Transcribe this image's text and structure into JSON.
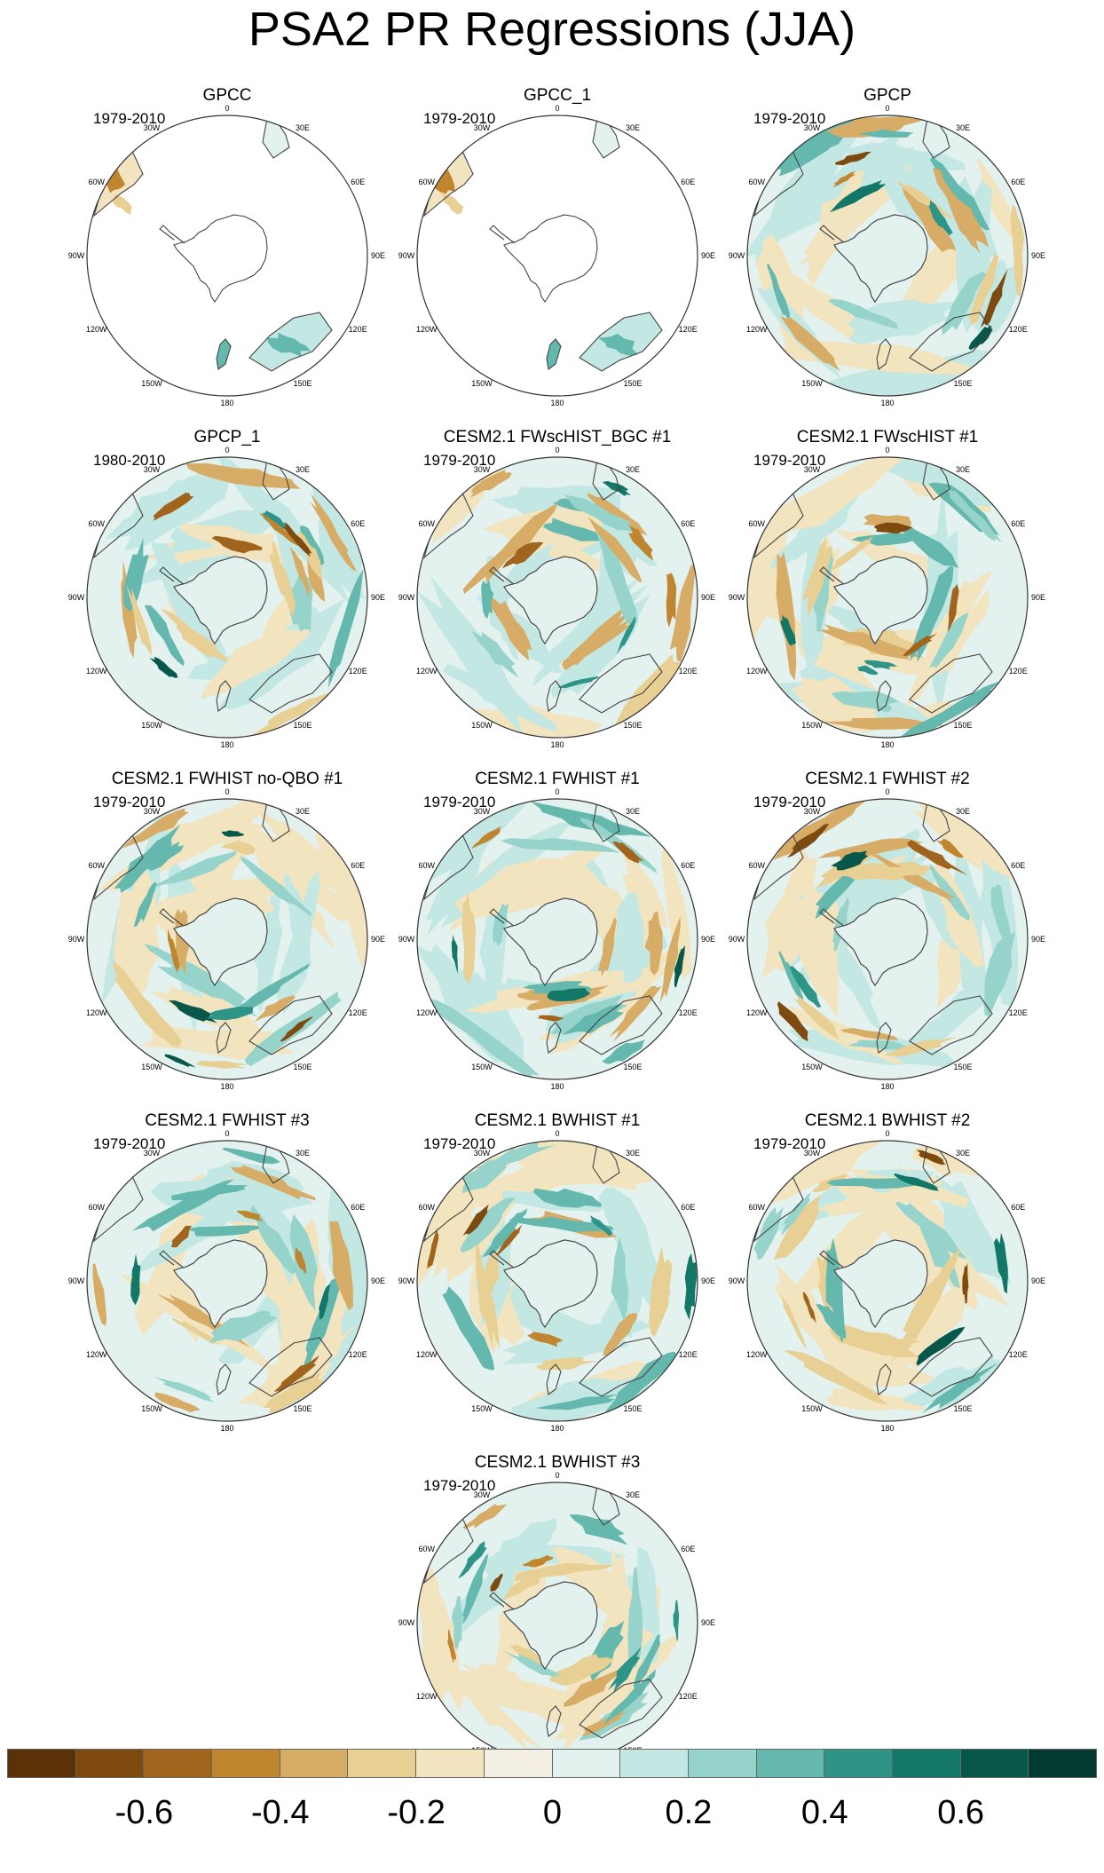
{
  "title": "PSA2 PR Regressions (JJA)",
  "longitude_labels": [
    "0",
    "30E",
    "60E",
    "90E",
    "120E",
    "150E",
    "180",
    "150W",
    "120W",
    "90W",
    "60W",
    "30W"
  ],
  "panels": [
    {
      "title": "GPCC",
      "period": "1979-2010",
      "coverage": "land-only",
      "seed": 11
    },
    {
      "title": "GPCC_1",
      "period": "1979-2010",
      "coverage": "land-only",
      "seed": 12
    },
    {
      "title": "GPCP",
      "period": "1979-2010",
      "coverage": "full",
      "seed": 3
    },
    {
      "title": "GPCP_1",
      "period": "1980-2010",
      "coverage": "full",
      "seed": 4
    },
    {
      "title": "CESM2.1 FWscHIST_BGC #1",
      "period": "1979-2010",
      "coverage": "full",
      "seed": 5
    },
    {
      "title": "CESM2.1 FWscHIST #1",
      "period": "1979-2010",
      "coverage": "full",
      "seed": 6
    },
    {
      "title": "CESM2.1 FWHIST no-QBO #1",
      "period": "1979-2010",
      "coverage": "full",
      "seed": 7
    },
    {
      "title": "CESM2.1 FWHIST #1",
      "period": "1979-2010",
      "coverage": "full",
      "seed": 8
    },
    {
      "title": "CESM2.1 FWHIST #2",
      "period": "1979-2010",
      "coverage": "full",
      "seed": 9
    },
    {
      "title": "CESM2.1 FWHIST #3",
      "period": "1979-2010",
      "coverage": "full",
      "seed": 10
    },
    {
      "title": "CESM2.1 BWHIST #1",
      "period": "1979-2010",
      "coverage": "full",
      "seed": 13
    },
    {
      "title": "CESM2.1 BWHIST #2",
      "period": "1979-2010",
      "coverage": "full",
      "seed": 14
    },
    {
      "title": "CESM2.1 BWHIST #3",
      "period": "1979-2010",
      "coverage": "full",
      "seed": 15
    }
  ],
  "colorbar": {
    "colors": [
      "#5b3207",
      "#7e4a10",
      "#a0641c",
      "#c0852f",
      "#d6ac66",
      "#e8cf93",
      "#f3e4c0",
      "#f4efe3",
      "#e3f1ef",
      "#c3e7e2",
      "#96d3ca",
      "#64b8ad",
      "#2f9488",
      "#127766",
      "#07584a",
      "#033a2f"
    ],
    "labels": [
      "-0.6",
      "-0.4",
      "-0.2",
      "0",
      "0.2",
      "0.4",
      "0.6"
    ]
  }
}
